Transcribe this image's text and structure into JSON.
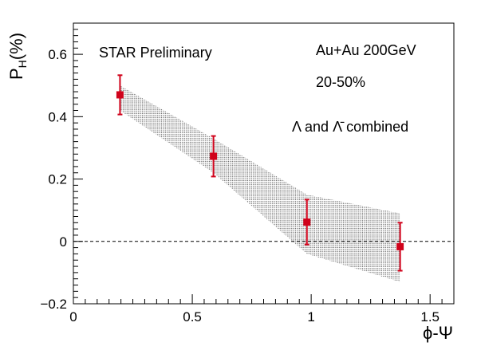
{
  "chart_data": {
    "type": "scatter",
    "xlabel": "ϕ-Ψ",
    "ylabel": {
      "main": "P",
      "sub": "H",
      "suffix": "(%)"
    },
    "xlim": [
      0,
      1.6
    ],
    "ylim": [
      -0.2,
      0.7
    ],
    "x_ticks": [
      {
        "v": 0,
        "label": "0"
      },
      {
        "v": 0.5,
        "label": "0.5"
      },
      {
        "v": 1,
        "label": "1"
      },
      {
        "v": 1.5,
        "label": "1.5"
      }
    ],
    "y_ticks": [
      {
        "v": -0.2,
        "label": "−0.2"
      },
      {
        "v": 0,
        "label": "0"
      },
      {
        "v": 0.2,
        "label": "0.2"
      },
      {
        "v": 0.4,
        "label": "0.4"
      },
      {
        "v": 0.6,
        "label": "0.6"
      }
    ],
    "annotations": {
      "experiment": "STAR Preliminary",
      "system": "Au+Au 200GeV",
      "centrality": "20-50%",
      "species": "Λ and Λ̄ combined"
    },
    "series": [
      {
        "marker": "square",
        "color": "#d0021b",
        "points": [
          {
            "x": 0.196,
            "y": 0.47,
            "err": 0.063
          },
          {
            "x": 0.589,
            "y": 0.273,
            "err": 0.065
          },
          {
            "x": 0.982,
            "y": 0.062,
            "err": 0.072
          },
          {
            "x": 1.374,
            "y": -0.017,
            "err": 0.077
          }
        ]
      }
    ],
    "systematic_band": {
      "color": "#555555",
      "pattern": "dotted",
      "x": [
        0.196,
        0.589,
        0.982,
        1.374
      ],
      "upper": [
        0.5,
        0.33,
        0.15,
        0.09
      ],
      "lower": [
        0.42,
        0.22,
        -0.04,
        -0.13
      ]
    },
    "reference_line": {
      "y": 0,
      "style": "dashed"
    }
  }
}
